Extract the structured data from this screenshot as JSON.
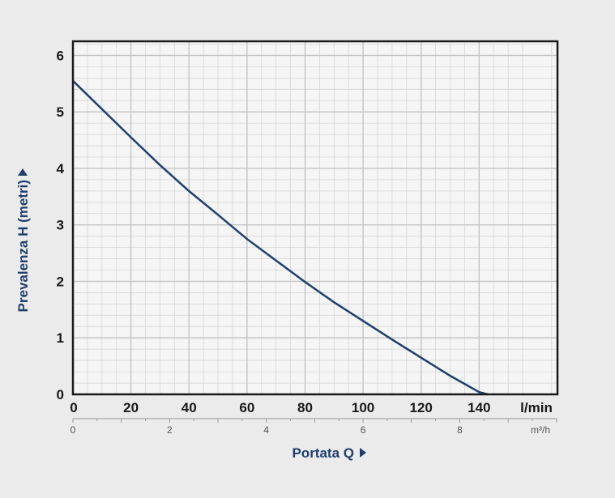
{
  "chart_data": {
    "type": "line",
    "title": "",
    "xlabel": "Portata Q",
    "ylabel": "Prevalenza H (metri)",
    "x_unit_primary": "l/min",
    "x_unit_secondary": "m³/h",
    "xlim": [
      0,
      167
    ],
    "ylim": [
      0,
      6.25
    ],
    "x_ticks": [
      0,
      20,
      40,
      60,
      80,
      100,
      120,
      140
    ],
    "x_ticks_secondary": [
      0,
      2,
      4,
      6,
      8
    ],
    "y_ticks": [
      0,
      1,
      2,
      3,
      4,
      5,
      6
    ],
    "grid": true,
    "line_color": "#1f3f6e",
    "series": [
      {
        "x": [
          0,
          10,
          20,
          30,
          40,
          50,
          60,
          70,
          80,
          90,
          100,
          110,
          120,
          130,
          140,
          143
        ],
        "y": [
          5.55,
          5.05,
          4.55,
          4.06,
          3.6,
          3.18,
          2.75,
          2.37,
          1.99,
          1.63,
          1.3,
          0.97,
          0.65,
          0.33,
          0.04,
          0.0
        ]
      }
    ]
  }
}
